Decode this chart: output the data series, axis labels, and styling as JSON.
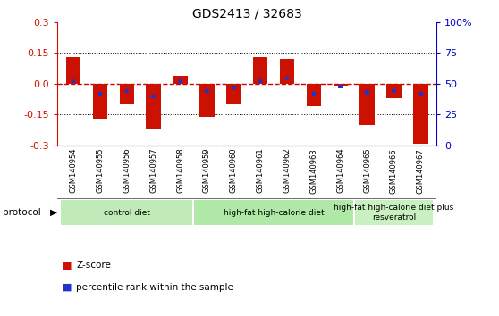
{
  "title": "GDS2413 / 32683",
  "samples": [
    "GSM140954",
    "GSM140955",
    "GSM140956",
    "GSM140957",
    "GSM140958",
    "GSM140959",
    "GSM140960",
    "GSM140961",
    "GSM140962",
    "GSM140963",
    "GSM140964",
    "GSM140965",
    "GSM140966",
    "GSM140967"
  ],
  "zscore": [
    0.13,
    -0.17,
    -0.1,
    -0.22,
    0.04,
    -0.16,
    -0.1,
    0.13,
    0.12,
    -0.11,
    -0.01,
    -0.2,
    -0.07,
    -0.29
  ],
  "pct_rank": [
    0.52,
    0.42,
    0.44,
    0.4,
    0.52,
    0.44,
    0.47,
    0.52,
    0.54,
    0.42,
    0.48,
    0.43,
    0.44,
    0.42
  ],
  "groups": [
    {
      "label": "control diet",
      "start": 0,
      "end": 4,
      "color": "#c0eab8"
    },
    {
      "label": "high-fat high-calorie diet",
      "start": 5,
      "end": 10,
      "color": "#b0e8a8"
    },
    {
      "label": "high-fat high-calorie diet plus\nresveratrol",
      "start": 11,
      "end": 13,
      "color": "#c8f0c0"
    }
  ],
  "bar_color": "#cc1100",
  "blue_color": "#2233cc",
  "zero_line_color": "#cc0000",
  "grid_color": "#000000",
  "ylim": [
    -0.3,
    0.3
  ],
  "yticks_left": [
    -0.3,
    -0.15,
    0.0,
    0.15,
    0.3
  ],
  "yticks_right": [
    0,
    25,
    50,
    75,
    100
  ],
  "bg_color": "#ffffff",
  "plot_bg": "#ffffff",
  "label_zscore": "Z-score",
  "label_pct": "percentile rank within the sample"
}
